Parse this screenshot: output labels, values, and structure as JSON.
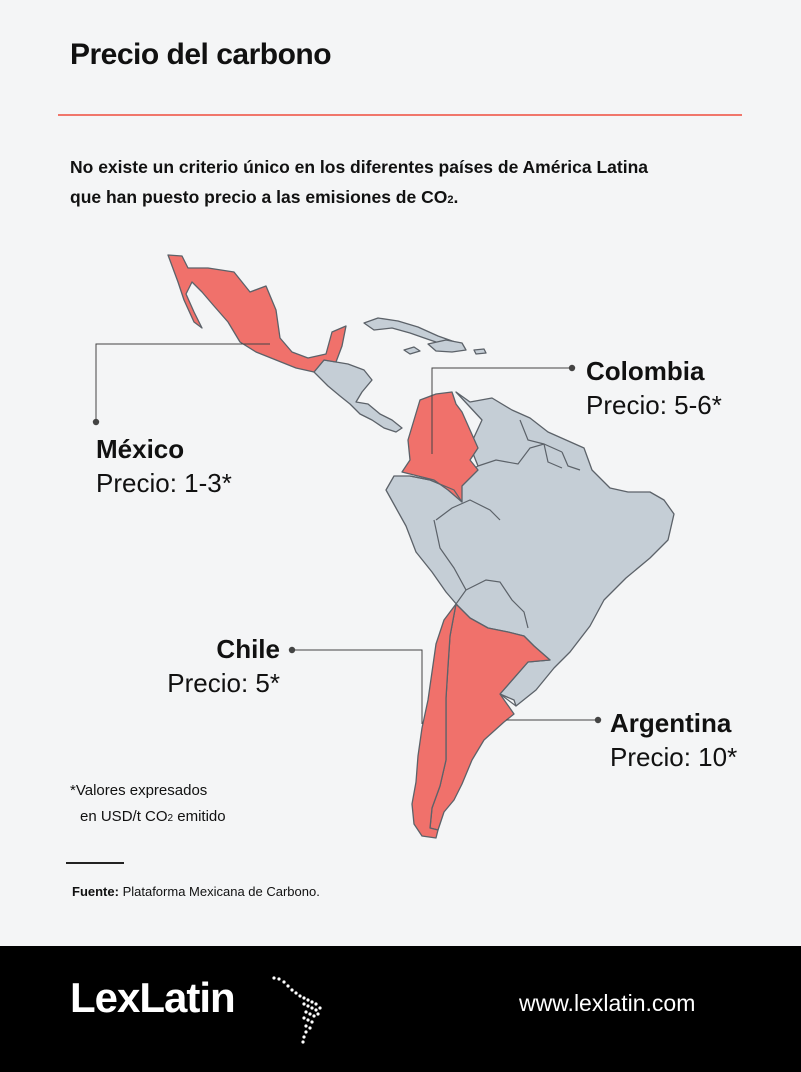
{
  "header": {
    "title": "Precio del carbono",
    "intro_line1": "No existe un criterio único en los diferentes países de América Latina",
    "intro_line2": "que han puesto precio a las emisiones de CO",
    "intro_subscript": "2",
    "intro_end": "."
  },
  "map": {
    "highlight_color": "#f0716b",
    "base_color": "#c5ced6",
    "border_color": "#5c6269",
    "countries": [
      {
        "id": "mexico",
        "name": "México",
        "price": "Precio: 1-3*",
        "highlighted": true
      },
      {
        "id": "colombia",
        "name": "Colombia",
        "price": "Precio: 5-6*",
        "highlighted": true
      },
      {
        "id": "chile",
        "name": "Chile",
        "price": "Precio: 5*",
        "highlighted": true
      },
      {
        "id": "argentina",
        "name": "Argentina",
        "price": "Precio: 10*",
        "highlighted": true
      }
    ]
  },
  "note": {
    "line1": "*Valores expresados",
    "line2_a": "en USD/t CO",
    "line2_sub": "2",
    "line2_b": " emitido"
  },
  "source": {
    "label": "Fuente:",
    "text": " Plataforma Mexicana de Carbono."
  },
  "footer": {
    "brand": "LexLatin",
    "url": "www.lexlatin.com",
    "icon": "latin-america-dots-icon"
  }
}
